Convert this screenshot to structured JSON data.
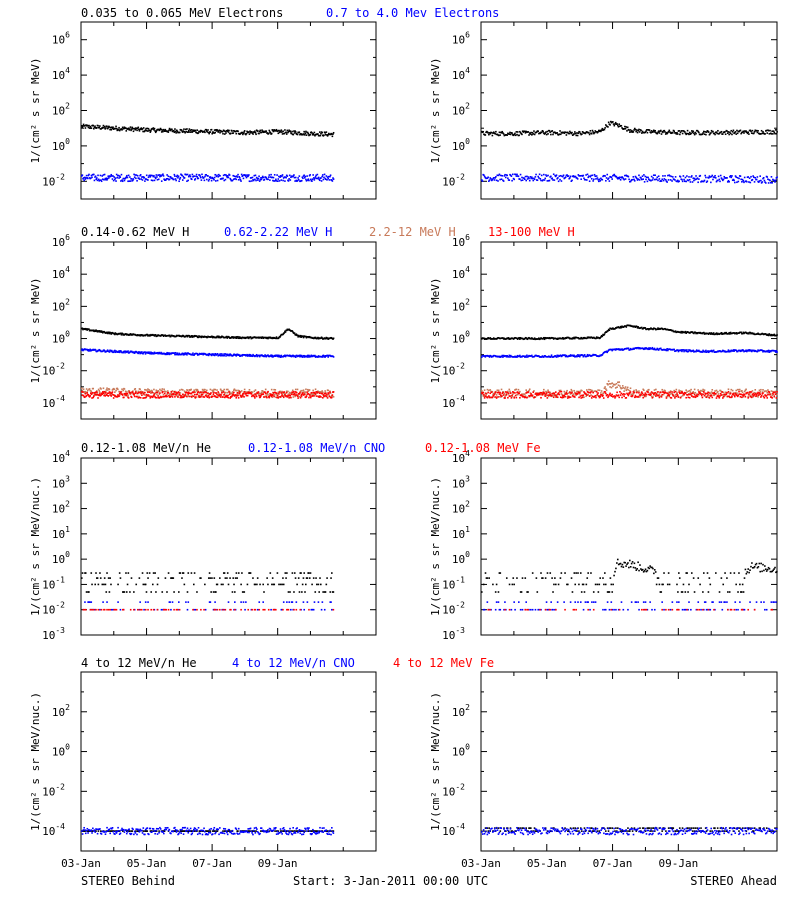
{
  "colors": {
    "he": "#000000",
    "cno": "#0000ff",
    "fe": "#ff0000",
    "h_mid": "#c87a5a",
    "h_high": "#ff0000",
    "axis": "#000000"
  },
  "footer": {
    "left": "STEREO Behind",
    "center": "Start:  3-Jan-2011 00:00 UTC",
    "right": "STEREO Ahead"
  },
  "x_axis": {
    "ticks": [
      "03-Jan",
      "05-Jan",
      "07-Jan",
      "09-Jan"
    ],
    "tick_days": [
      0,
      2,
      4,
      6
    ],
    "range_days": [
      0,
      9
    ],
    "data_end_days": {
      "behind": 7.7,
      "ahead": 9.0
    }
  },
  "rows": [
    {
      "titles": [
        {
          "text": "0.035 to 0.065 MeV Electrons",
          "color": "#000000"
        },
        {
          "text": "0.7 to 4.0 Mev Electrons",
          "color": "#0000ff"
        }
      ],
      "ylabel": "1/(cm² s sr MeV)",
      "ylog": [
        -3,
        7
      ],
      "ytick_exps": [
        -2,
        0,
        2,
        4,
        6
      ]
    },
    {
      "titles": [
        {
          "text": "0.14-0.62 MeV H",
          "color": "#000000"
        },
        {
          "text": "0.62-2.22 MeV H",
          "color": "#0000ff"
        },
        {
          "text": "2.2-12 MeV H",
          "color": "#c87a5a"
        },
        {
          "text": "13-100 MeV H",
          "color": "#ff0000"
        }
      ],
      "ylabel": "1/(cm² s sr MeV)",
      "ylog": [
        -5,
        6
      ],
      "ytick_exps": [
        -4,
        -2,
        0,
        2,
        4,
        6
      ]
    },
    {
      "titles": [
        {
          "text": "0.12-1.08 MeV/n He",
          "color": "#000000"
        },
        {
          "text": "0.12-1.08 MeV/n CNO",
          "color": "#0000ff"
        },
        {
          "text": "0.12-1.08 MeV Fe",
          "color": "#ff0000"
        }
      ],
      "ylabel": "1/(cm² s sr MeV/nuc.)",
      "ylog": [
        -3,
        4
      ],
      "ytick_exps": [
        -3,
        -2,
        -1,
        0,
        1,
        2,
        3,
        4
      ]
    },
    {
      "titles": [
        {
          "text": "4 to 12 MeV/n He",
          "color": "#000000"
        },
        {
          "text": "4 to 12 MeV/n CNO",
          "color": "#0000ff"
        },
        {
          "text": "4 to 12 MeV Fe",
          "color": "#ff0000"
        }
      ],
      "ylabel": "1/(cm² s sr MeV/nuc.)",
      "ylog": [
        -5,
        4
      ],
      "ytick_exps": [
        -4,
        -2,
        0,
        2
      ]
    }
  ],
  "chart_data": [
    {
      "type": "scatter",
      "row": 0,
      "spacecraft": "STEREO Behind",
      "yscale": "log",
      "series": [
        {
          "color": "#000000",
          "x_days": [
            0,
            1,
            2,
            3,
            4,
            5,
            6,
            7,
            7.7
          ],
          "log10_y": [
            1.1,
            1.0,
            0.9,
            0.85,
            0.8,
            0.75,
            0.8,
            0.7,
            0.65
          ],
          "scatter": 0.12
        },
        {
          "color": "#0000ff",
          "x_days": [
            0,
            3,
            6,
            7.7
          ],
          "log10_y": [
            -1.8,
            -1.8,
            -1.8,
            -1.8
          ],
          "scatter": 0.2
        }
      ]
    },
    {
      "type": "scatter",
      "row": 0,
      "spacecraft": "STEREO Ahead",
      "yscale": "log",
      "series": [
        {
          "color": "#000000",
          "x_days": [
            0,
            1,
            2,
            3,
            3.6,
            3.9,
            4.1,
            4.5,
            5,
            6,
            7,
            9
          ],
          "log10_y": [
            0.7,
            0.7,
            0.75,
            0.7,
            0.8,
            1.3,
            1.2,
            0.9,
            0.8,
            0.75,
            0.75,
            0.8
          ],
          "scatter": 0.12
        },
        {
          "color": "#0000ff",
          "x_days": [
            0,
            3,
            6,
            9
          ],
          "log10_y": [
            -1.8,
            -1.8,
            -1.85,
            -1.9
          ],
          "scatter": 0.2
        }
      ]
    },
    {
      "type": "scatter",
      "row": 1,
      "spacecraft": "STEREO Behind",
      "yscale": "log",
      "series": [
        {
          "color": "#000000",
          "x_days": [
            0,
            1,
            2,
            3,
            4,
            5,
            6,
            6.3,
            6.6,
            7,
            7.7
          ],
          "log10_y": [
            0.6,
            0.3,
            0.2,
            0.15,
            0.1,
            0.05,
            0.05,
            0.6,
            0.15,
            0.05,
            0.0
          ],
          "scatter": 0.05
        },
        {
          "color": "#0000ff",
          "x_days": [
            0,
            2,
            4,
            6,
            7.7
          ],
          "log10_y": [
            -0.7,
            -0.9,
            -1.0,
            -1.1,
            -1.1
          ],
          "scatter": 0.06
        },
        {
          "color": "#c87a5a",
          "x_days": [
            0,
            3,
            7.7
          ],
          "log10_y": [
            -3.3,
            -3.4,
            -3.4
          ],
          "scatter": 0.25
        },
        {
          "color": "#ff0000",
          "x_days": [
            0,
            3,
            7.7
          ],
          "log10_y": [
            -3.5,
            -3.5,
            -3.5
          ],
          "scatter": 0.2
        }
      ]
    },
    {
      "type": "scatter",
      "row": 1,
      "spacecraft": "STEREO Ahead",
      "yscale": "log",
      "series": [
        {
          "color": "#000000",
          "x_days": [
            0,
            2,
            3.6,
            3.9,
            4.5,
            5,
            5.5,
            6,
            7,
            8,
            9
          ],
          "log10_y": [
            0.0,
            0.0,
            0.05,
            0.6,
            0.8,
            0.6,
            0.6,
            0.4,
            0.3,
            0.35,
            0.2
          ],
          "scatter": 0.05
        },
        {
          "color": "#0000ff",
          "x_days": [
            0,
            2,
            3.6,
            3.9,
            4.5,
            5,
            6,
            7,
            8,
            9
          ],
          "log10_y": [
            -1.1,
            -1.1,
            -1.05,
            -0.7,
            -0.65,
            -0.6,
            -0.75,
            -0.8,
            -0.75,
            -0.8
          ],
          "scatter": 0.06
        },
        {
          "color": "#c87a5a",
          "x_days": [
            0,
            3.6,
            3.9,
            4.2,
            4.6,
            9
          ],
          "log10_y": [
            -3.4,
            -3.4,
            -2.8,
            -2.9,
            -3.4,
            -3.4
          ],
          "scatter": 0.25
        },
        {
          "color": "#ff0000",
          "x_days": [
            0,
            4.5,
            9
          ],
          "log10_y": [
            -3.5,
            -3.5,
            -3.5
          ],
          "scatter": 0.2
        }
      ]
    },
    {
      "type": "scatter",
      "row": 2,
      "spacecraft": "STEREO Behind",
      "yscale": "log",
      "series": [
        {
          "color": "#000000",
          "x_days": [
            0,
            7.7
          ],
          "log10_y": [
            -1.0,
            -1.0
          ],
          "levels": [
            -1.3,
            -1.0,
            -0.75,
            -0.55
          ],
          "density": 0.55
        },
        {
          "color": "#0000ff",
          "x_days": [
            0,
            7.7
          ],
          "log10_y": [
            -2.0,
            -2.0
          ],
          "levels": [
            -2.0,
            -1.7
          ],
          "density": 0.3
        },
        {
          "color": "#ff0000",
          "x_days": [
            0,
            7.7
          ],
          "log10_y": [
            -2.0,
            -2.0
          ],
          "levels": [
            -2.0
          ],
          "density": 0.2
        }
      ]
    },
    {
      "type": "scatter",
      "row": 2,
      "spacecraft": "STEREO Ahead",
      "yscale": "log",
      "series": [
        {
          "color": "#000000",
          "x_days": [
            0,
            3.9,
            4.1,
            4.5,
            4.9,
            5.3,
            6,
            7.5,
            8.2,
            9
          ],
          "log10_y": [
            -1.0,
            -1.0,
            -0.15,
            -0.2,
            -0.35,
            -0.5,
            -1.0,
            -1.0,
            -0.3,
            -0.4
          ],
          "levels": [
            -1.3,
            -1.0,
            -0.75,
            -0.55
          ],
          "density": 0.55
        },
        {
          "color": "#0000ff",
          "x_days": [
            0,
            9
          ],
          "log10_y": [
            -2.0,
            -2.0
          ],
          "levels": [
            -2.0,
            -1.7
          ],
          "density": 0.4
        },
        {
          "color": "#ff0000",
          "x_days": [
            0,
            9
          ],
          "log10_y": [
            -2.0,
            -2.0
          ],
          "levels": [
            -2.0
          ],
          "density": 0.2
        }
      ]
    },
    {
      "type": "scatter",
      "row": 3,
      "spacecraft": "STEREO Behind",
      "yscale": "log",
      "series": [
        {
          "color": "#000000",
          "x_days": [
            0,
            7.7
          ],
          "log10_y": [
            -4.0,
            -4.0
          ],
          "levels": [
            -4.0
          ],
          "density": 0.6
        },
        {
          "color": "#0000ff",
          "x_days": [
            0,
            7.7
          ],
          "log10_y": [
            -4.0,
            -4.0
          ],
          "levels": [
            -4.0,
            -5.0
          ],
          "density": 0.15
        }
      ]
    },
    {
      "type": "scatter",
      "row": 3,
      "spacecraft": "STEREO Ahead",
      "yscale": "log",
      "series": [
        {
          "color": "#000000",
          "x_days": [
            0,
            4.0,
            4.2,
            4.5,
            9
          ],
          "log10_y": [
            -4.0,
            -4.0,
            -3.85,
            -4.0,
            -4.0
          ],
          "levels": [
            -4.0,
            -3.85
          ],
          "density": 0.6
        },
        {
          "color": "#0000ff",
          "x_days": [
            0,
            9
          ],
          "log10_y": [
            -4.0,
            -4.0
          ],
          "levels": [
            -4.0,
            -5.0
          ],
          "density": 0.15
        }
      ]
    }
  ]
}
